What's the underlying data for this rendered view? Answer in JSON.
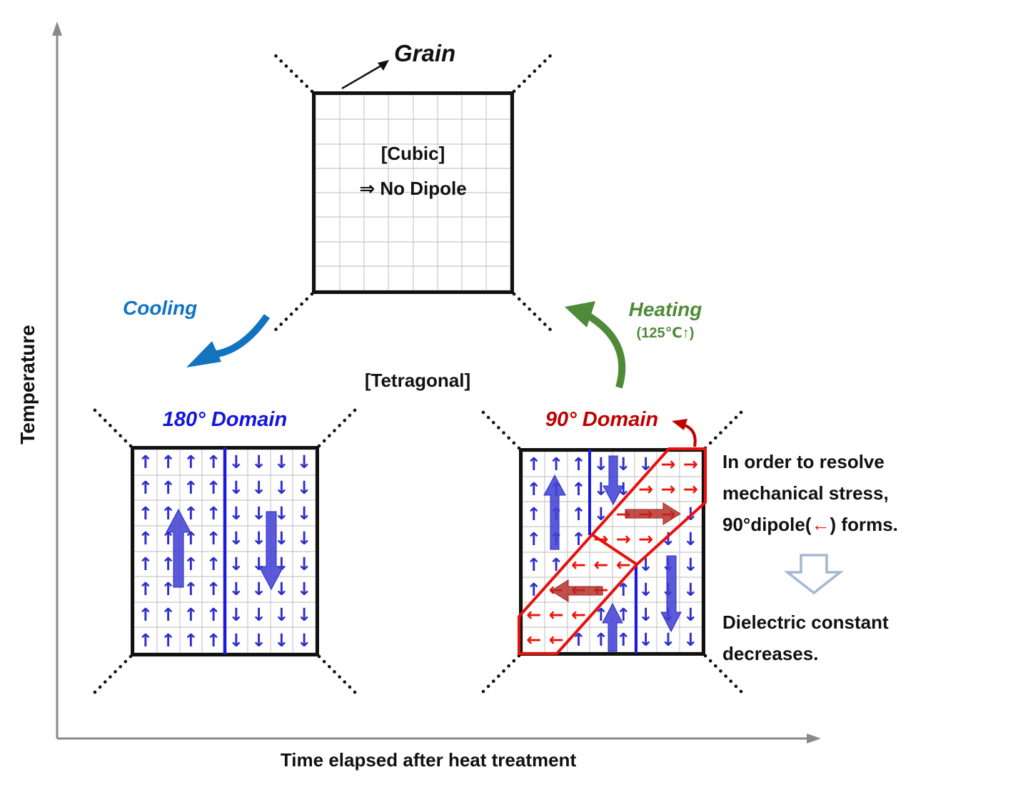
{
  "colors": {
    "cooling_blue": "#1273BE",
    "heating_green": "#4F8A38",
    "domain_blue_text": "#1414E0",
    "domain_red_text": "#C00000",
    "grid_arrow_blue": "#2E2ECC",
    "grid_arrow_red": "#EE1208",
    "band_outline_red": "#E8100C",
    "axis_gray": "#8A8A8A",
    "hollow_arrow_outline": "#A3B8D4"
  },
  "axes": {
    "y_label": "Temperature",
    "x_label": "Time elapsed after heat treatment"
  },
  "grain": {
    "label": "Grain",
    "phase": "[Cubic]",
    "dipole_note": "⇒ No Dipole"
  },
  "transitions": {
    "cooling_label": "Cooling",
    "heating_label": "Heating",
    "heating_temp": "(125℃↑)",
    "phase_label": "[Tetragonal]"
  },
  "arrow_glyphs": {
    "U": "↑",
    "D": "↓",
    "L": "←",
    "R": "→"
  },
  "left_domain": {
    "title": "180° Domain",
    "rows": [
      "UUUUDDDD",
      "UUUUDDDD",
      "UUUUDDDD",
      "UUUUDDDD",
      "UUUUDDDD",
      "UUUUDDDD",
      "UUUUDDDD",
      "UUUUDDDD"
    ]
  },
  "right_domain": {
    "title": "90° Domain",
    "rows": [
      "UUUDDDRR",
      "UUUDDRRR",
      "UUUDRRRD",
      "UUURRRDD",
      "UULLLDDD",
      "ULLLUDDD",
      "LLLUUDDD",
      "LLUUUDDD"
    ]
  },
  "notes": {
    "stress_line1": "In order to resolve",
    "stress_line2": "mechanical stress,",
    "stress_line3_pre": "90°dipole(",
    "stress_arrow": "←",
    "stress_line3_post": ") forms.",
    "result_line1": "Dielectric constant",
    "result_line2": "decreases."
  }
}
